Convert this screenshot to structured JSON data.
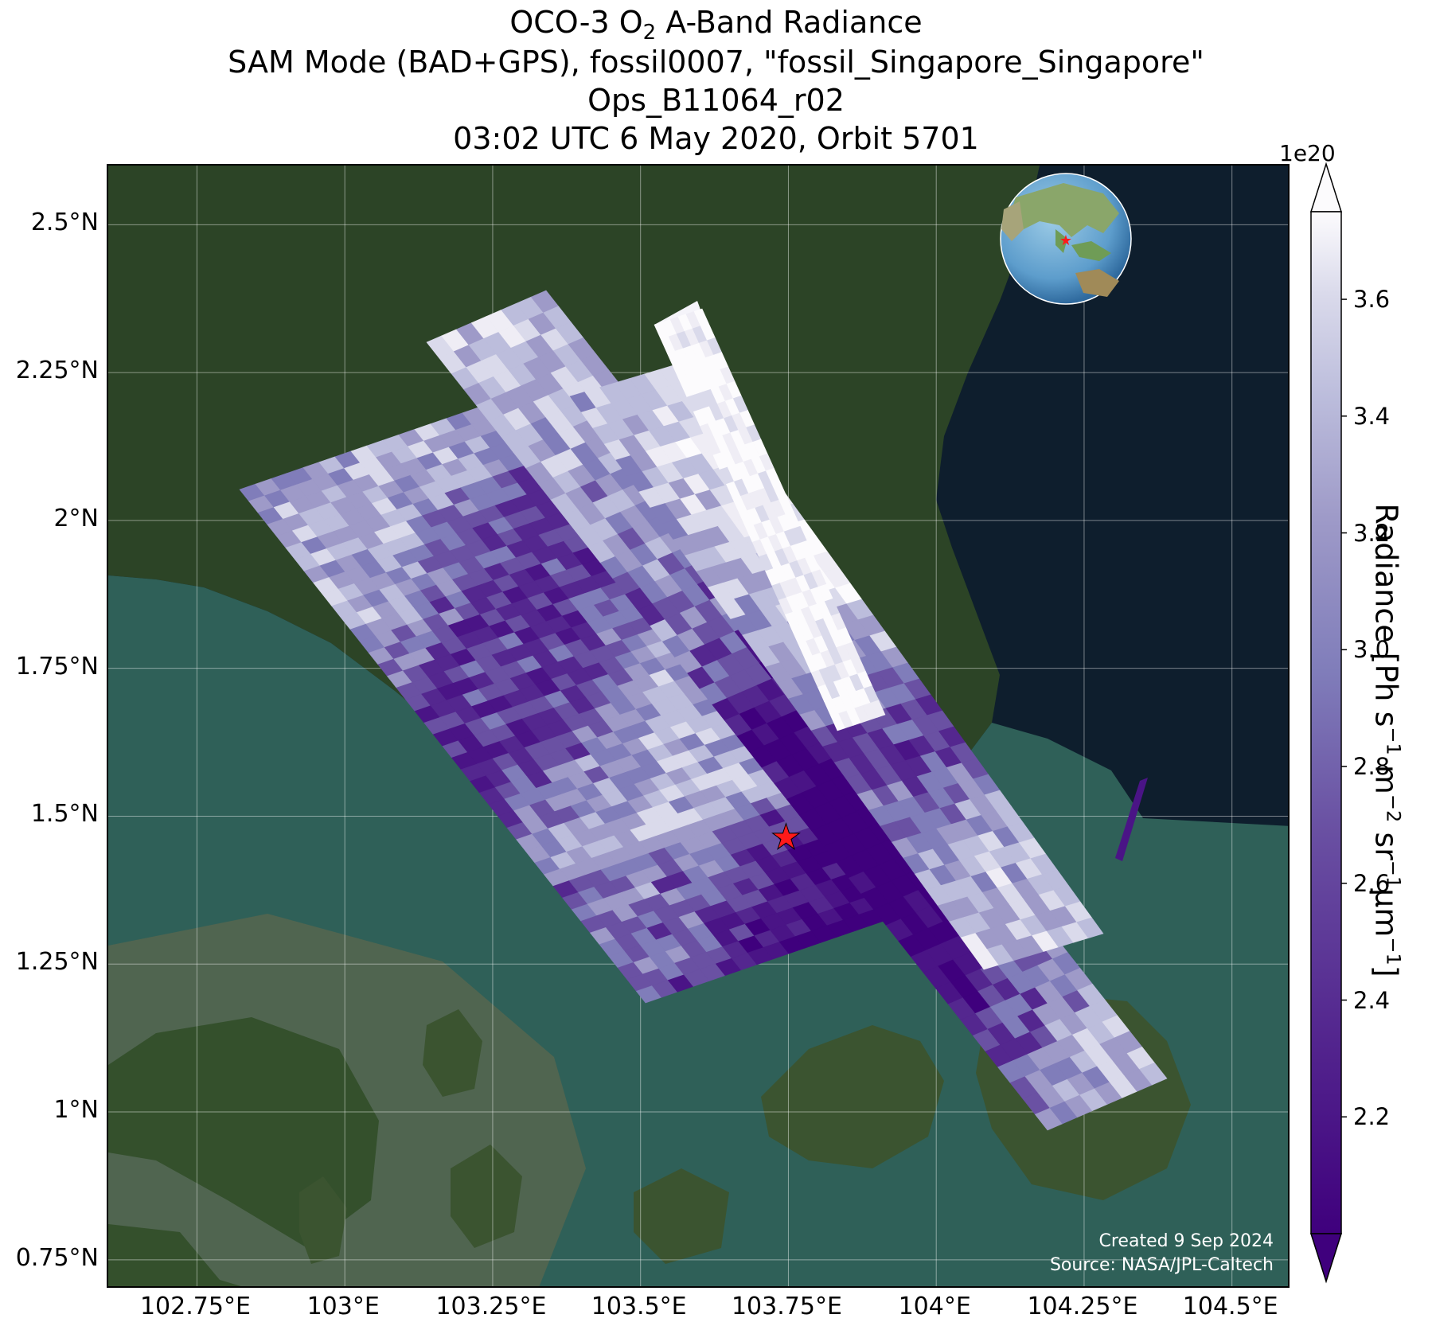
{
  "title": {
    "line1_pre": "OCO-3 O",
    "line1_sub": "2",
    "line1_post": " A-Band Radiance",
    "line2": "SAM Mode (BAD+GPS), fossil0007, \"fossil_Singapore_Singapore\"",
    "line3": "Ops_B11064_r02",
    "line4": "03:02 UTC 6 May 2020, Orbit 5701"
  },
  "map": {
    "lat_ticks": [
      "2.5°N",
      "2.25°N",
      "2°N",
      "1.75°N",
      "1.5°N",
      "1.25°N",
      "1°N",
      "0.75°N"
    ],
    "lat_values": [
      2.5,
      2.25,
      2.0,
      1.75,
      1.5,
      1.25,
      1.0,
      0.75
    ],
    "lon_ticks": [
      "102.75°E",
      "103°E",
      "103.25°E",
      "103.5°E",
      "103.75°E",
      "104°E",
      "104.25°E",
      "104.5°E"
    ],
    "lon_values": [
      102.75,
      103.0,
      103.25,
      103.5,
      103.75,
      104.0,
      104.25,
      104.5
    ],
    "lon_range": [
      102.6,
      104.6
    ],
    "lat_range": [
      0.7,
      2.6
    ],
    "target": {
      "name": "fossil_Singapore_Singapore",
      "lat": 1.465,
      "lon": 103.746,
      "marker": "red-star-icon"
    },
    "inset_globe": {
      "marker": "red-star-icon"
    },
    "credit_line1": "Created 9 Sep 2024",
    "credit_line2": "Source: NASA/JPL-Caltech",
    "colors": {
      "ocean": "#0e1e2d",
      "land": "#2c4426",
      "shallow_water": "#2f6058",
      "target": "#ff1a1a"
    }
  },
  "colorbar": {
    "label": "Radiance [Ph s⁻¹ m⁻² sr⁻¹μm⁻¹]",
    "exponent": "1e20",
    "ticks": [
      "2.2",
      "2.4",
      "2.6",
      "2.8",
      "3.0",
      "3.2",
      "3.4",
      "3.6"
    ],
    "tick_values": [
      2.2,
      2.4,
      2.6,
      2.8,
      3.0,
      3.2,
      3.4,
      3.6
    ],
    "range": [
      2.0,
      3.75
    ],
    "colormap": "Purples_r",
    "extend": "both"
  }
}
